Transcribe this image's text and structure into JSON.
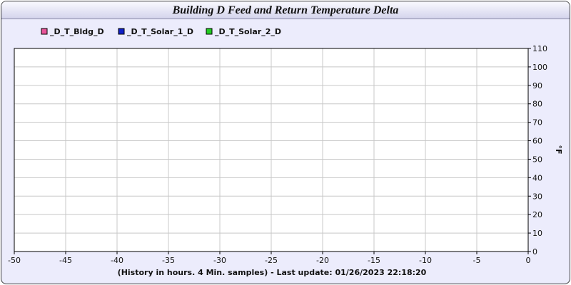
{
  "chart_data": {
    "type": "line",
    "title": "Building D Feed and Return Temperature Delta",
    "xlabel": "(History in hours. 4 Min. samples) - Last update: 01/26/2023 22:18:20",
    "ylabel": "°F",
    "xlim": [
      -50,
      0
    ],
    "ylim": [
      0,
      110
    ],
    "x_ticks": [
      -50,
      -45,
      -40,
      -35,
      -30,
      -25,
      -20,
      -15,
      -10,
      -5,
      0
    ],
    "y_ticks": [
      0,
      10,
      20,
      30,
      40,
      50,
      60,
      70,
      80,
      90,
      100,
      110
    ],
    "y_axis_side": "right",
    "grid": true,
    "legend_position": "top-left",
    "series": [
      {
        "name": "_D_T_Bldg_D",
        "color": "#e8559a",
        "values": []
      },
      {
        "name": "_D_T_Solar_1_D",
        "color": "#1020c8",
        "values": []
      },
      {
        "name": "_D_T_Solar_2_D",
        "color": "#22cc22",
        "values": []
      }
    ]
  }
}
